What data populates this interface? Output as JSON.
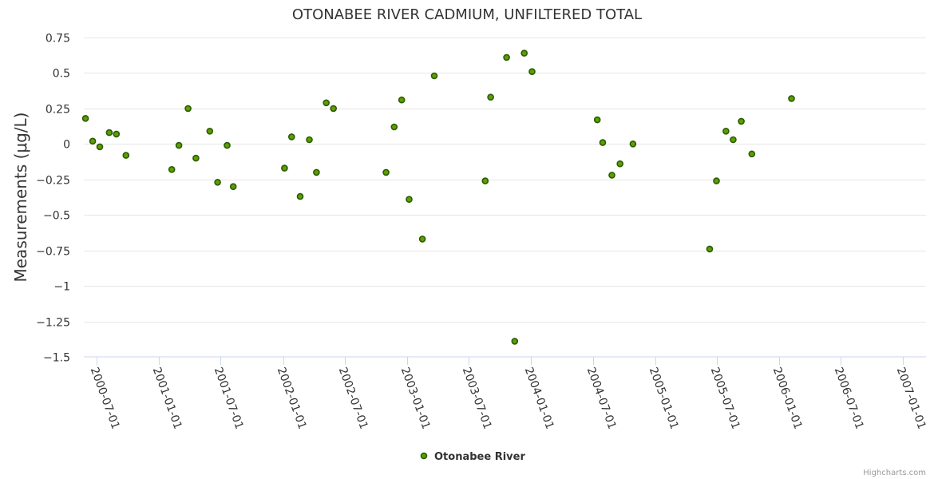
{
  "chart_data": {
    "type": "scatter",
    "title": "OTONABEE RIVER CADMIUM, UNFILTERED TOTAL",
    "ylabel": "Measurements (μg/L)",
    "xlabel": "",
    "ylim": [
      -1.5,
      0.75
    ],
    "y_ticks": [
      0.75,
      0.5,
      0.25,
      0,
      -0.25,
      -0.5,
      -0.75,
      -1,
      -1.25,
      -1.5
    ],
    "y_tick_labels": [
      "0.75",
      "0.5",
      "0.25",
      "0",
      "−0.25",
      "−0.5",
      "−0.75",
      "−1",
      "−1.25",
      "−1.5"
    ],
    "x_ticks": [
      "2000-07-01",
      "2001-01-01",
      "2001-07-01",
      "2002-01-01",
      "2002-07-01",
      "2003-01-01",
      "2003-07-01",
      "2004-01-01",
      "2004-07-01",
      "2005-01-01",
      "2005-07-01",
      "2006-01-01",
      "2006-07-01",
      "2007-01-01"
    ],
    "xlim": [
      "2000-05-24",
      "2007-03-09"
    ],
    "grid": true,
    "legend_position": "bottom-center",
    "series": [
      {
        "name": "Otonabee River",
        "color": "#5aa000",
        "points": [
          {
            "x": "2000-05-29",
            "y": 0.18
          },
          {
            "x": "2000-06-19",
            "y": 0.02
          },
          {
            "x": "2000-07-10",
            "y": -0.02
          },
          {
            "x": "2000-08-07",
            "y": 0.08
          },
          {
            "x": "2000-08-28",
            "y": 0.07
          },
          {
            "x": "2000-09-25",
            "y": -0.08
          },
          {
            "x": "2001-02-07",
            "y": -0.18
          },
          {
            "x": "2001-02-28",
            "y": -0.01
          },
          {
            "x": "2001-03-27",
            "y": 0.25
          },
          {
            "x": "2001-04-19",
            "y": -0.1
          },
          {
            "x": "2001-05-30",
            "y": 0.09
          },
          {
            "x": "2001-06-22",
            "y": -0.27
          },
          {
            "x": "2001-07-20",
            "y": -0.01
          },
          {
            "x": "2001-08-07",
            "y": -0.3
          },
          {
            "x": "2002-01-05",
            "y": -0.17
          },
          {
            "x": "2002-01-26",
            "y": 0.05
          },
          {
            "x": "2002-02-20",
            "y": -0.37
          },
          {
            "x": "2002-03-19",
            "y": 0.03
          },
          {
            "x": "2002-04-09",
            "y": -0.2
          },
          {
            "x": "2002-05-08",
            "y": 0.29
          },
          {
            "x": "2002-05-29",
            "y": 0.25
          },
          {
            "x": "2002-10-31",
            "y": -0.2
          },
          {
            "x": "2002-11-24",
            "y": 0.12
          },
          {
            "x": "2002-12-16",
            "y": 0.31
          },
          {
            "x": "2003-01-07",
            "y": -0.39
          },
          {
            "x": "2003-02-15",
            "y": -0.67
          },
          {
            "x": "2003-03-22",
            "y": 0.48
          },
          {
            "x": "2003-08-19",
            "y": -0.26
          },
          {
            "x": "2003-09-04",
            "y": 0.33
          },
          {
            "x": "2003-10-21",
            "y": 0.61
          },
          {
            "x": "2003-11-14",
            "y": -1.39
          },
          {
            "x": "2003-12-12",
            "y": 0.64
          },
          {
            "x": "2004-01-04",
            "y": 0.51
          },
          {
            "x": "2004-07-14",
            "y": 0.17
          },
          {
            "x": "2004-07-30",
            "y": 0.01
          },
          {
            "x": "2004-08-26",
            "y": -0.22
          },
          {
            "x": "2004-09-19",
            "y": -0.14
          },
          {
            "x": "2004-10-27",
            "y": 0.0
          },
          {
            "x": "2005-06-10",
            "y": -0.74
          },
          {
            "x": "2005-06-30",
            "y": -0.26
          },
          {
            "x": "2005-07-28",
            "y": 0.09
          },
          {
            "x": "2005-08-18",
            "y": 0.03
          },
          {
            "x": "2005-09-11",
            "y": 0.16
          },
          {
            "x": "2005-10-12",
            "y": -0.07
          },
          {
            "x": "2006-02-06",
            "y": 0.32
          }
        ]
      }
    ]
  },
  "credits": "Highcharts.com"
}
